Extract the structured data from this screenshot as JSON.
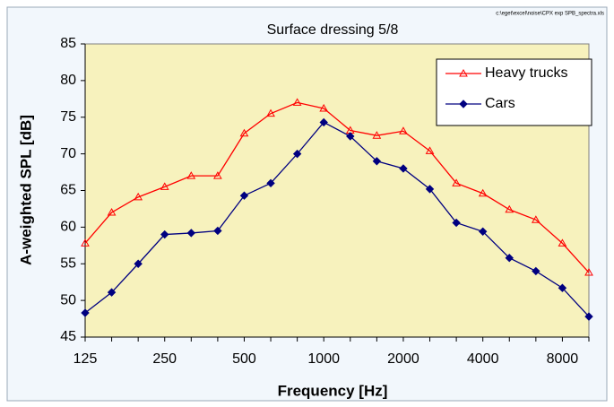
{
  "chart_data": {
    "type": "line",
    "title": "Surface dressing 5/8",
    "annotation": "c:\\eget\\excel\\noise\\CPX exp SPB_spectra.xls",
    "x_label": "Frequency [Hz]",
    "y_label": "A-weighted SPL [dB]",
    "categories": [
      "125",
      null,
      null,
      "250",
      null,
      null,
      "500",
      null,
      null,
      "1000",
      null,
      null,
      "2000",
      null,
      null,
      "4000",
      null,
      null,
      "8000",
      null
    ],
    "series": [
      {
        "name": "Heavy trucks",
        "color": "#ff0000",
        "marker": "triangle-open",
        "values": [
          57.8,
          62,
          64.1,
          65.5,
          67,
          67,
          72.8,
          75.5,
          77,
          76.2,
          73.2,
          72.5,
          73.1,
          70.4,
          66,
          64.6,
          62.4,
          61,
          57.8,
          53.8
        ]
      },
      {
        "name": "Cars",
        "color": "#000080",
        "marker": "diamond",
        "values": [
          48.3,
          51.1,
          55,
          59,
          59.2,
          59.5,
          64.3,
          66,
          70,
          74.3,
          72.4,
          69,
          68,
          65.2,
          60.6,
          59.4,
          55.8,
          54,
          51.7,
          47.8
        ]
      }
    ],
    "ylim": [
      45,
      85
    ],
    "yticks": [
      45,
      50,
      55,
      60,
      65,
      70,
      75,
      80,
      85
    ],
    "grid": false,
    "legend": "upper right",
    "plot_background": "#f7f2bd"
  }
}
